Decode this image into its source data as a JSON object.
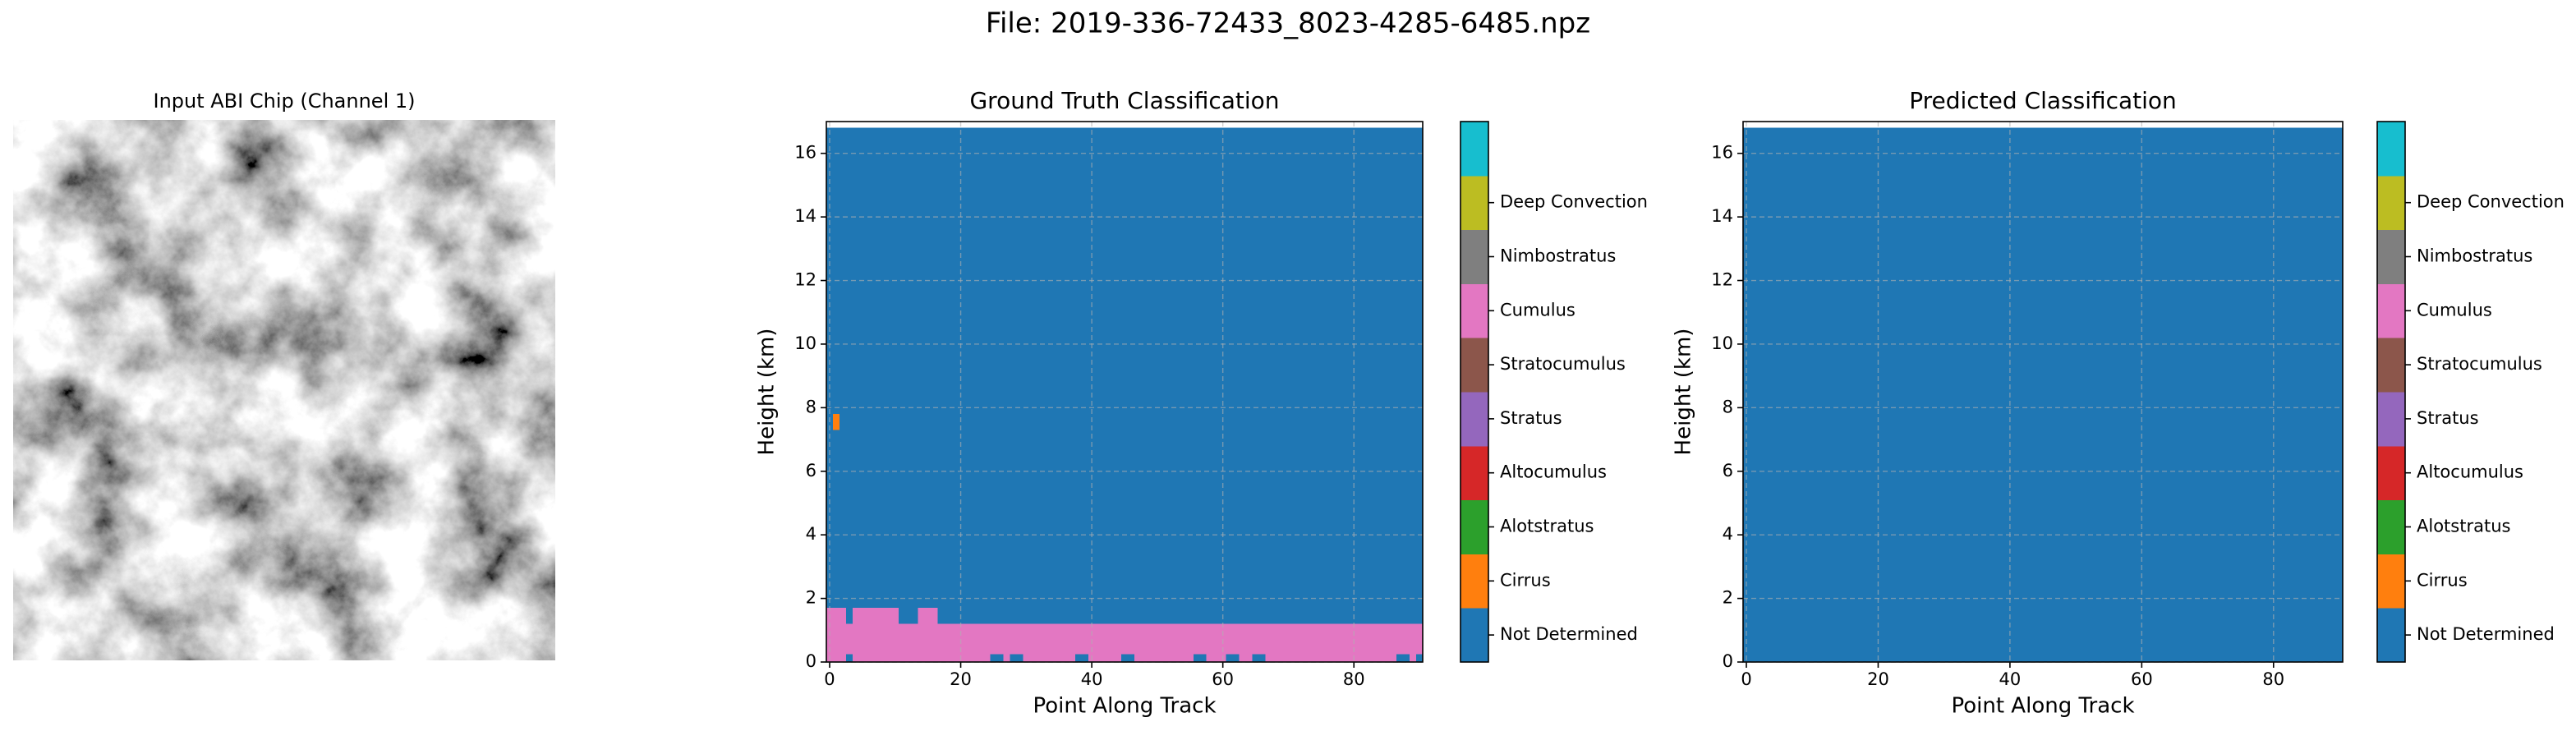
{
  "title": "File: 2019-336-72433_8023-4285-6485.npz",
  "chart_data": [
    {
      "type": "image",
      "title": "Input ABI Chip (Channel 1)"
    },
    {
      "type": "heatmap",
      "title": "Ground Truth Classification",
      "xlabel": "Point Along Track",
      "ylabel": "Height (km)",
      "xlim": [
        -0.5,
        90.5
      ],
      "ylim": [
        0,
        17
      ],
      "xticks": [
        0,
        20,
        40,
        60,
        80
      ],
      "yticks": [
        0,
        2,
        4,
        6,
        8,
        10,
        12,
        14,
        16
      ],
      "grid": true,
      "classes": [
        "Not Determined",
        "Cirrus",
        "Alotstratus",
        "Altocumulus",
        "Stratus",
        "Stratocumulus",
        "Cumulus",
        "Nimbostratus",
        "Deep Convection"
      ],
      "colors": [
        "#1f77b4",
        "#ff7f0e",
        "#2ca02c",
        "#d62728",
        "#9467bd",
        "#8c564b",
        "#e377c2",
        "#7f7f7f",
        "#bcbd22",
        "#17becf"
      ],
      "cells": {
        "x_start": [
          -0.5,
          -0.5,
          2.5,
          3.5,
          10.5,
          13.5,
          16.5,
          24.5,
          26.5,
          27.5,
          29.5,
          37.5,
          39.5,
          44.5,
          46.5,
          55.5,
          57.5,
          60.5,
          62.5,
          64.5,
          66.5,
          86.5,
          88.5,
          89.5,
          0.5
        ],
        "x_end": [
          90.5,
          2.5,
          3.5,
          10.5,
          13.5,
          16.5,
          24.5,
          26.5,
          27.5,
          29.5,
          37.5,
          39.5,
          44.5,
          46.5,
          55.5,
          57.5,
          60.5,
          62.5,
          64.5,
          66.5,
          86.5,
          88.5,
          89.5,
          90.5,
          1.5
        ],
        "base": [
          0,
          0,
          0.24,
          0,
          0,
          0,
          0,
          0.24,
          0,
          0.24,
          0,
          0.24,
          0,
          0.24,
          0,
          0.24,
          0,
          0.24,
          0,
          0.24,
          0,
          0.24,
          0,
          0.24,
          7.3
        ],
        "top": [
          16.8,
          1.7,
          1.2,
          1.7,
          1.2,
          1.7,
          1.2,
          1.2,
          1.2,
          1.2,
          1.2,
          1.2,
          1.2,
          1.2,
          1.2,
          1.2,
          1.2,
          1.2,
          1.2,
          1.2,
          1.2,
          1.2,
          1.2,
          1.2,
          7.8
        ],
        "class": [
          0,
          6,
          6,
          6,
          6,
          6,
          6,
          6,
          6,
          6,
          6,
          6,
          6,
          6,
          6,
          6,
          6,
          6,
          6,
          6,
          6,
          6,
          6,
          6,
          1
        ]
      }
    },
    {
      "type": "heatmap",
      "title": "Predicted Classification",
      "xlabel": "Point Along Track",
      "ylabel": "Height (km)",
      "xlim": [
        -0.5,
        90.5
      ],
      "ylim": [
        0,
        17
      ],
      "xticks": [
        0,
        20,
        40,
        60,
        80
      ],
      "yticks": [
        0,
        2,
        4,
        6,
        8,
        10,
        12,
        14,
        16
      ],
      "grid": true,
      "classes": [
        "Not Determined",
        "Cirrus",
        "Alotstratus",
        "Altocumulus",
        "Stratus",
        "Stratocumulus",
        "Cumulus",
        "Nimbostratus",
        "Deep Convection"
      ],
      "colors": [
        "#1f77b4",
        "#ff7f0e",
        "#2ca02c",
        "#d62728",
        "#9467bd",
        "#8c564b",
        "#e377c2",
        "#7f7f7f",
        "#bcbd22",
        "#17becf"
      ],
      "cells": {
        "x_start": [
          -0.5
        ],
        "x_end": [
          90.5
        ],
        "base": [
          0
        ],
        "top": [
          16.8
        ],
        "class": [
          0
        ]
      }
    }
  ]
}
